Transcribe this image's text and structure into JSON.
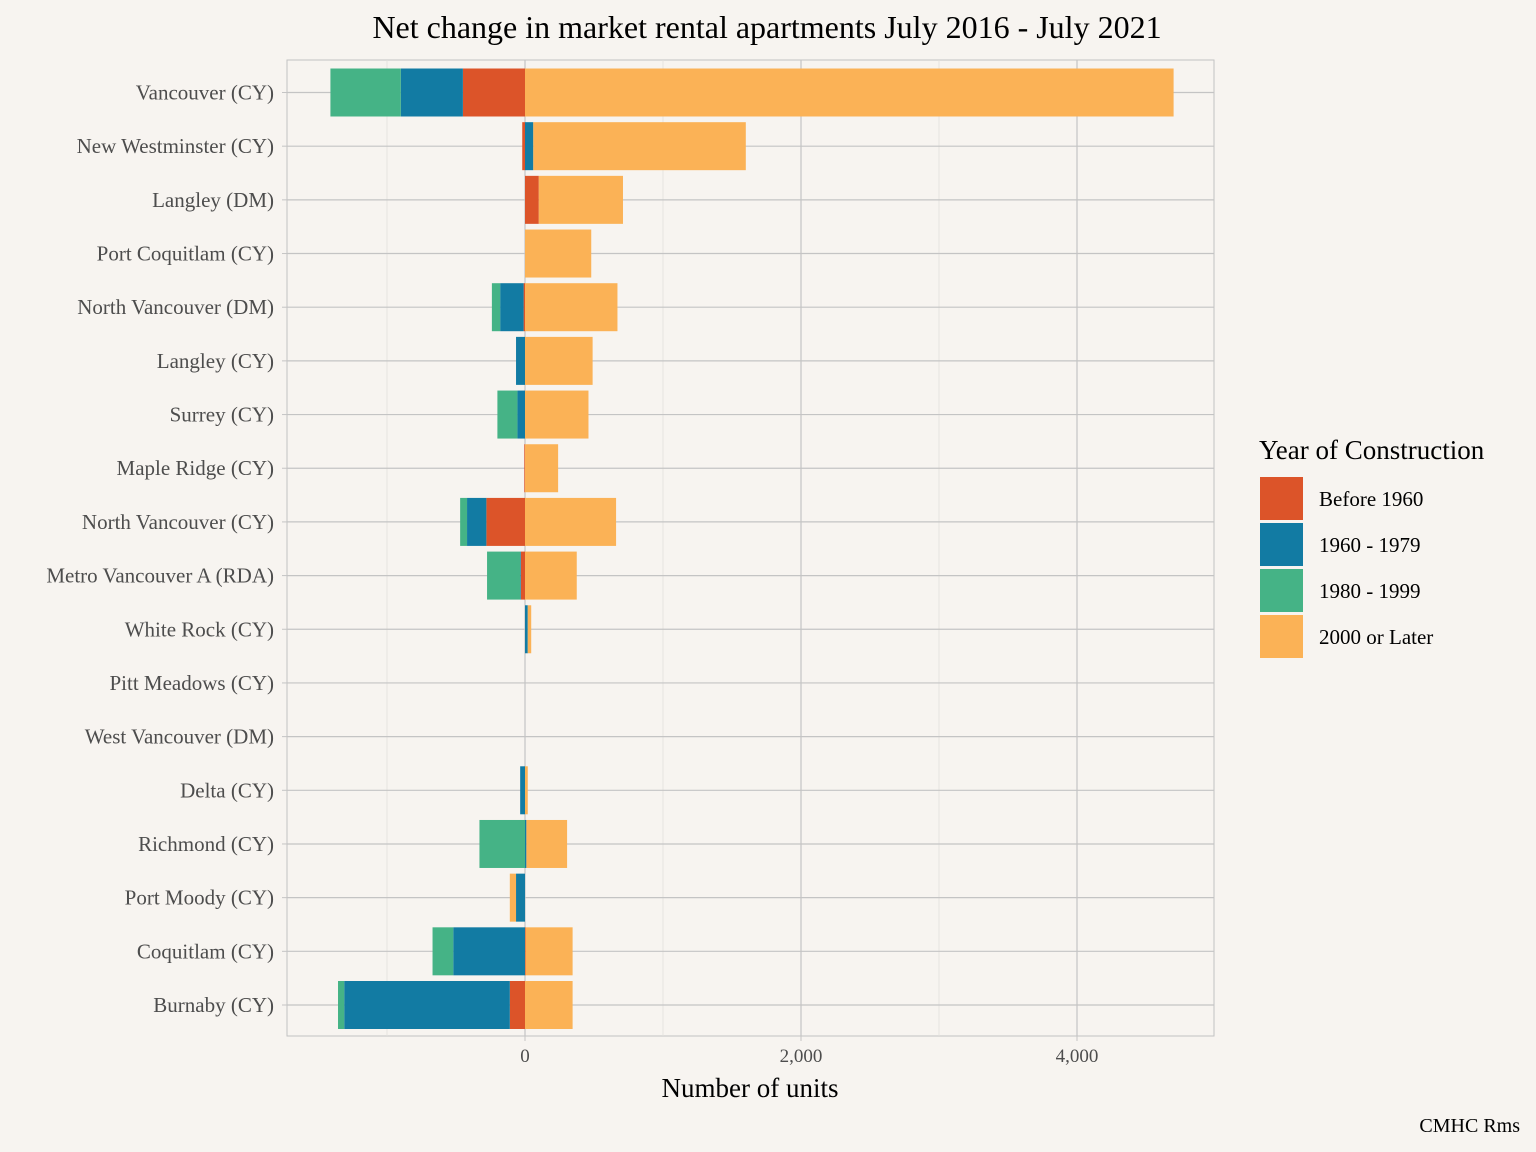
{
  "chart_data": {
    "type": "bar",
    "orientation": "horizontal",
    "stacked": "diverging",
    "title": "Net change in market rental apartments July 2016 - July 2021",
    "xlabel": "Number of units",
    "ylabel": "",
    "xlim": [
      -1720,
      5000
    ],
    "xticks": [
      0,
      2000,
      4000
    ],
    "xtick_labels": [
      "0",
      "2,000",
      "4,000"
    ],
    "grid": true,
    "legend_position": "right",
    "caption": "CMHC Rms",
    "categories": [
      "Vancouver (CY)",
      "New Westminster (CY)",
      "Langley (DM)",
      "Port Coquitlam (CY)",
      "North Vancouver (DM)",
      "Langley (CY)",
      "Surrey (CY)",
      "Maple Ridge (CY)",
      "North Vancouver (CY)",
      "Metro Vancouver A (RDA)",
      "White Rock (CY)",
      "Pitt Meadows (CY)",
      "West Vancouver (DM)",
      "Delta (CY)",
      "Richmond (CY)",
      "Port Moody (CY)",
      "Coquitlam (CY)",
      "Burnaby (CY)"
    ],
    "series": [
      {
        "name": "Before 1960",
        "color": "#dc5429",
        "values": [
          -450,
          -20,
          100,
          0,
          -10,
          0,
          0,
          -5,
          -280,
          -30,
          0,
          0,
          0,
          0,
          0,
          0,
          5,
          -110
        ]
      },
      {
        "name": "1960 - 1979",
        "color": "#127ba3",
        "values": [
          -450,
          60,
          0,
          0,
          -170,
          -65,
          -55,
          0,
          -140,
          -5,
          20,
          0,
          0,
          -35,
          10,
          -65,
          -520,
          -1200
        ]
      },
      {
        "name": "1980 - 1999",
        "color": "#45b386",
        "values": [
          -510,
          0,
          0,
          0,
          -60,
          0,
          -145,
          0,
          -50,
          -240,
          0,
          0,
          0,
          0,
          -330,
          0,
          -150,
          -45
        ]
      },
      {
        "name": "2000 or Later",
        "color": "#fbb256",
        "values": [
          4700,
          1540,
          610,
          480,
          670,
          490,
          460,
          240,
          660,
          375,
          25,
          0,
          0,
          20,
          295,
          -45,
          340,
          345
        ]
      }
    ]
  },
  "legend": {
    "title": "Year of Construction",
    "items": [
      {
        "label": "Before 1960",
        "color": "#dc5429"
      },
      {
        "label": "1960 - 1979",
        "color": "#127ba3"
      },
      {
        "label": "1980 - 1999",
        "color": "#45b386"
      },
      {
        "label": "2000 or Later",
        "color": "#fbb256"
      }
    ]
  }
}
